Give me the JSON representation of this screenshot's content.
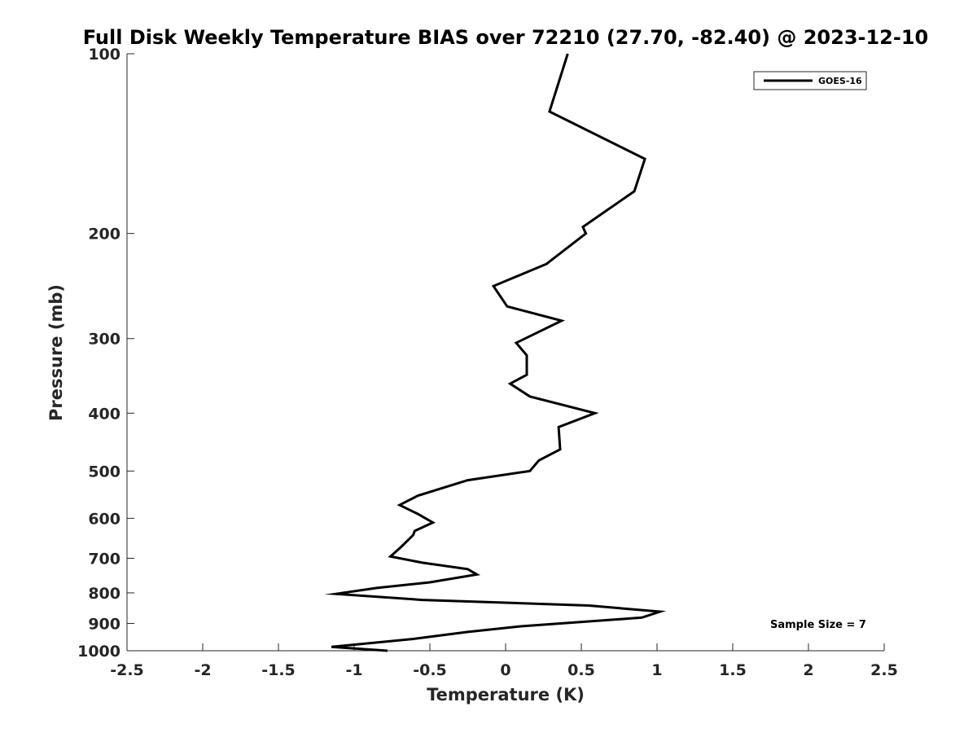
{
  "chart_data": {
    "type": "line",
    "title": "Full Disk Weekly Temperature BIAS over 72210 (27.70, -82.40) @ 2023-12-10",
    "xlabel": "Temperature (K)",
    "ylabel": "Pressure (mb)",
    "xlim": [
      -2.5,
      2.5
    ],
    "ylim": [
      100,
      1000
    ],
    "y_scale": "log",
    "y_reversed": true,
    "x_ticks": [
      "-2.5",
      "-2",
      "-1.5",
      "-1",
      "-0.5",
      "0",
      "0.5",
      "1",
      "1.5",
      "2",
      "2.5"
    ],
    "y_ticks": [
      "100",
      "200",
      "300",
      "400",
      "500",
      "600",
      "700",
      "800",
      "900",
      "1000"
    ],
    "grid": false,
    "legend_position": "top-right",
    "annotation": "Sample Size = 7",
    "series": [
      {
        "name": "GOES-16",
        "color": "#000000",
        "points": [
          {
            "x": 0.41,
            "p": 100
          },
          {
            "x": 0.29,
            "p": 125
          },
          {
            "x": 0.92,
            "p": 150
          },
          {
            "x": 0.85,
            "p": 170
          },
          {
            "x": 0.51,
            "p": 195
          },
          {
            "x": 0.53,
            "p": 200
          },
          {
            "x": 0.27,
            "p": 225
          },
          {
            "x": -0.08,
            "p": 245
          },
          {
            "x": 0.01,
            "p": 265
          },
          {
            "x": 0.37,
            "p": 280
          },
          {
            "x": 0.07,
            "p": 305
          },
          {
            "x": 0.14,
            "p": 320
          },
          {
            "x": 0.14,
            "p": 345
          },
          {
            "x": 0.03,
            "p": 357
          },
          {
            "x": 0.16,
            "p": 375
          },
          {
            "x": 0.59,
            "p": 400
          },
          {
            "x": 0.35,
            "p": 422
          },
          {
            "x": 0.36,
            "p": 460
          },
          {
            "x": 0.22,
            "p": 480
          },
          {
            "x": 0.16,
            "p": 500
          },
          {
            "x": -0.25,
            "p": 518
          },
          {
            "x": -0.58,
            "p": 550
          },
          {
            "x": -0.7,
            "p": 570
          },
          {
            "x": -0.58,
            "p": 590
          },
          {
            "x": -0.48,
            "p": 610
          },
          {
            "x": -0.6,
            "p": 630
          },
          {
            "x": -0.61,
            "p": 640
          },
          {
            "x": -0.69,
            "p": 670
          },
          {
            "x": -0.76,
            "p": 695
          },
          {
            "x": -0.55,
            "p": 712
          },
          {
            "x": -0.25,
            "p": 730
          },
          {
            "x": -0.19,
            "p": 745
          },
          {
            "x": -0.5,
            "p": 768
          },
          {
            "x": -0.85,
            "p": 785
          },
          {
            "x": -1.12,
            "p": 803
          },
          {
            "x": -0.55,
            "p": 822
          },
          {
            "x": 0.55,
            "p": 840
          },
          {
            "x": 1.02,
            "p": 860
          },
          {
            "x": 0.9,
            "p": 880
          },
          {
            "x": 0.1,
            "p": 910
          },
          {
            "x": -0.25,
            "p": 930
          },
          {
            "x": -0.6,
            "p": 955
          },
          {
            "x": -1.15,
            "p": 985
          },
          {
            "x": -0.78,
            "p": 1000
          }
        ]
      }
    ]
  }
}
